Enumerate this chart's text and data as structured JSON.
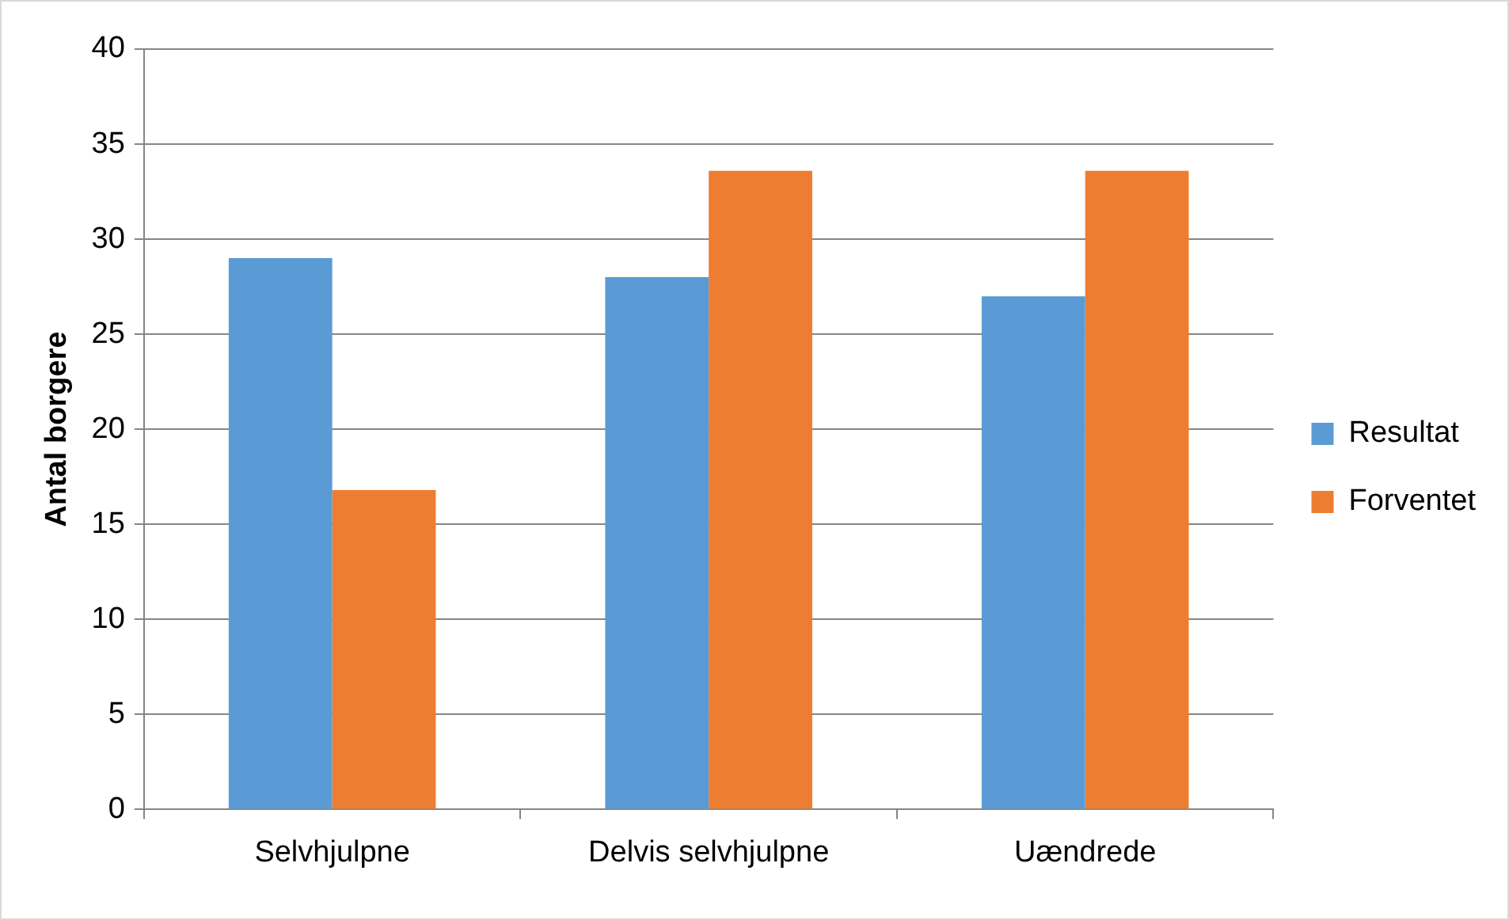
{
  "chart_data": {
    "type": "bar",
    "ylabel": "Antal borgere",
    "categories": [
      "Selvhjulpne",
      "Delvis selvhjulpne",
      "Uændrede"
    ],
    "series": [
      {
        "name": "Resultat",
        "color": "#5b9bd5",
        "values": [
          29,
          28,
          27
        ]
      },
      {
        "name": "Forventet",
        "color": "#ed7d31",
        "values": [
          16.8,
          33.6,
          33.6
        ]
      }
    ],
    "ylim": [
      0,
      40
    ],
    "yticks": [
      0,
      5,
      10,
      15,
      20,
      25,
      30,
      35,
      40
    ],
    "grid": "y",
    "legend": "right"
  }
}
